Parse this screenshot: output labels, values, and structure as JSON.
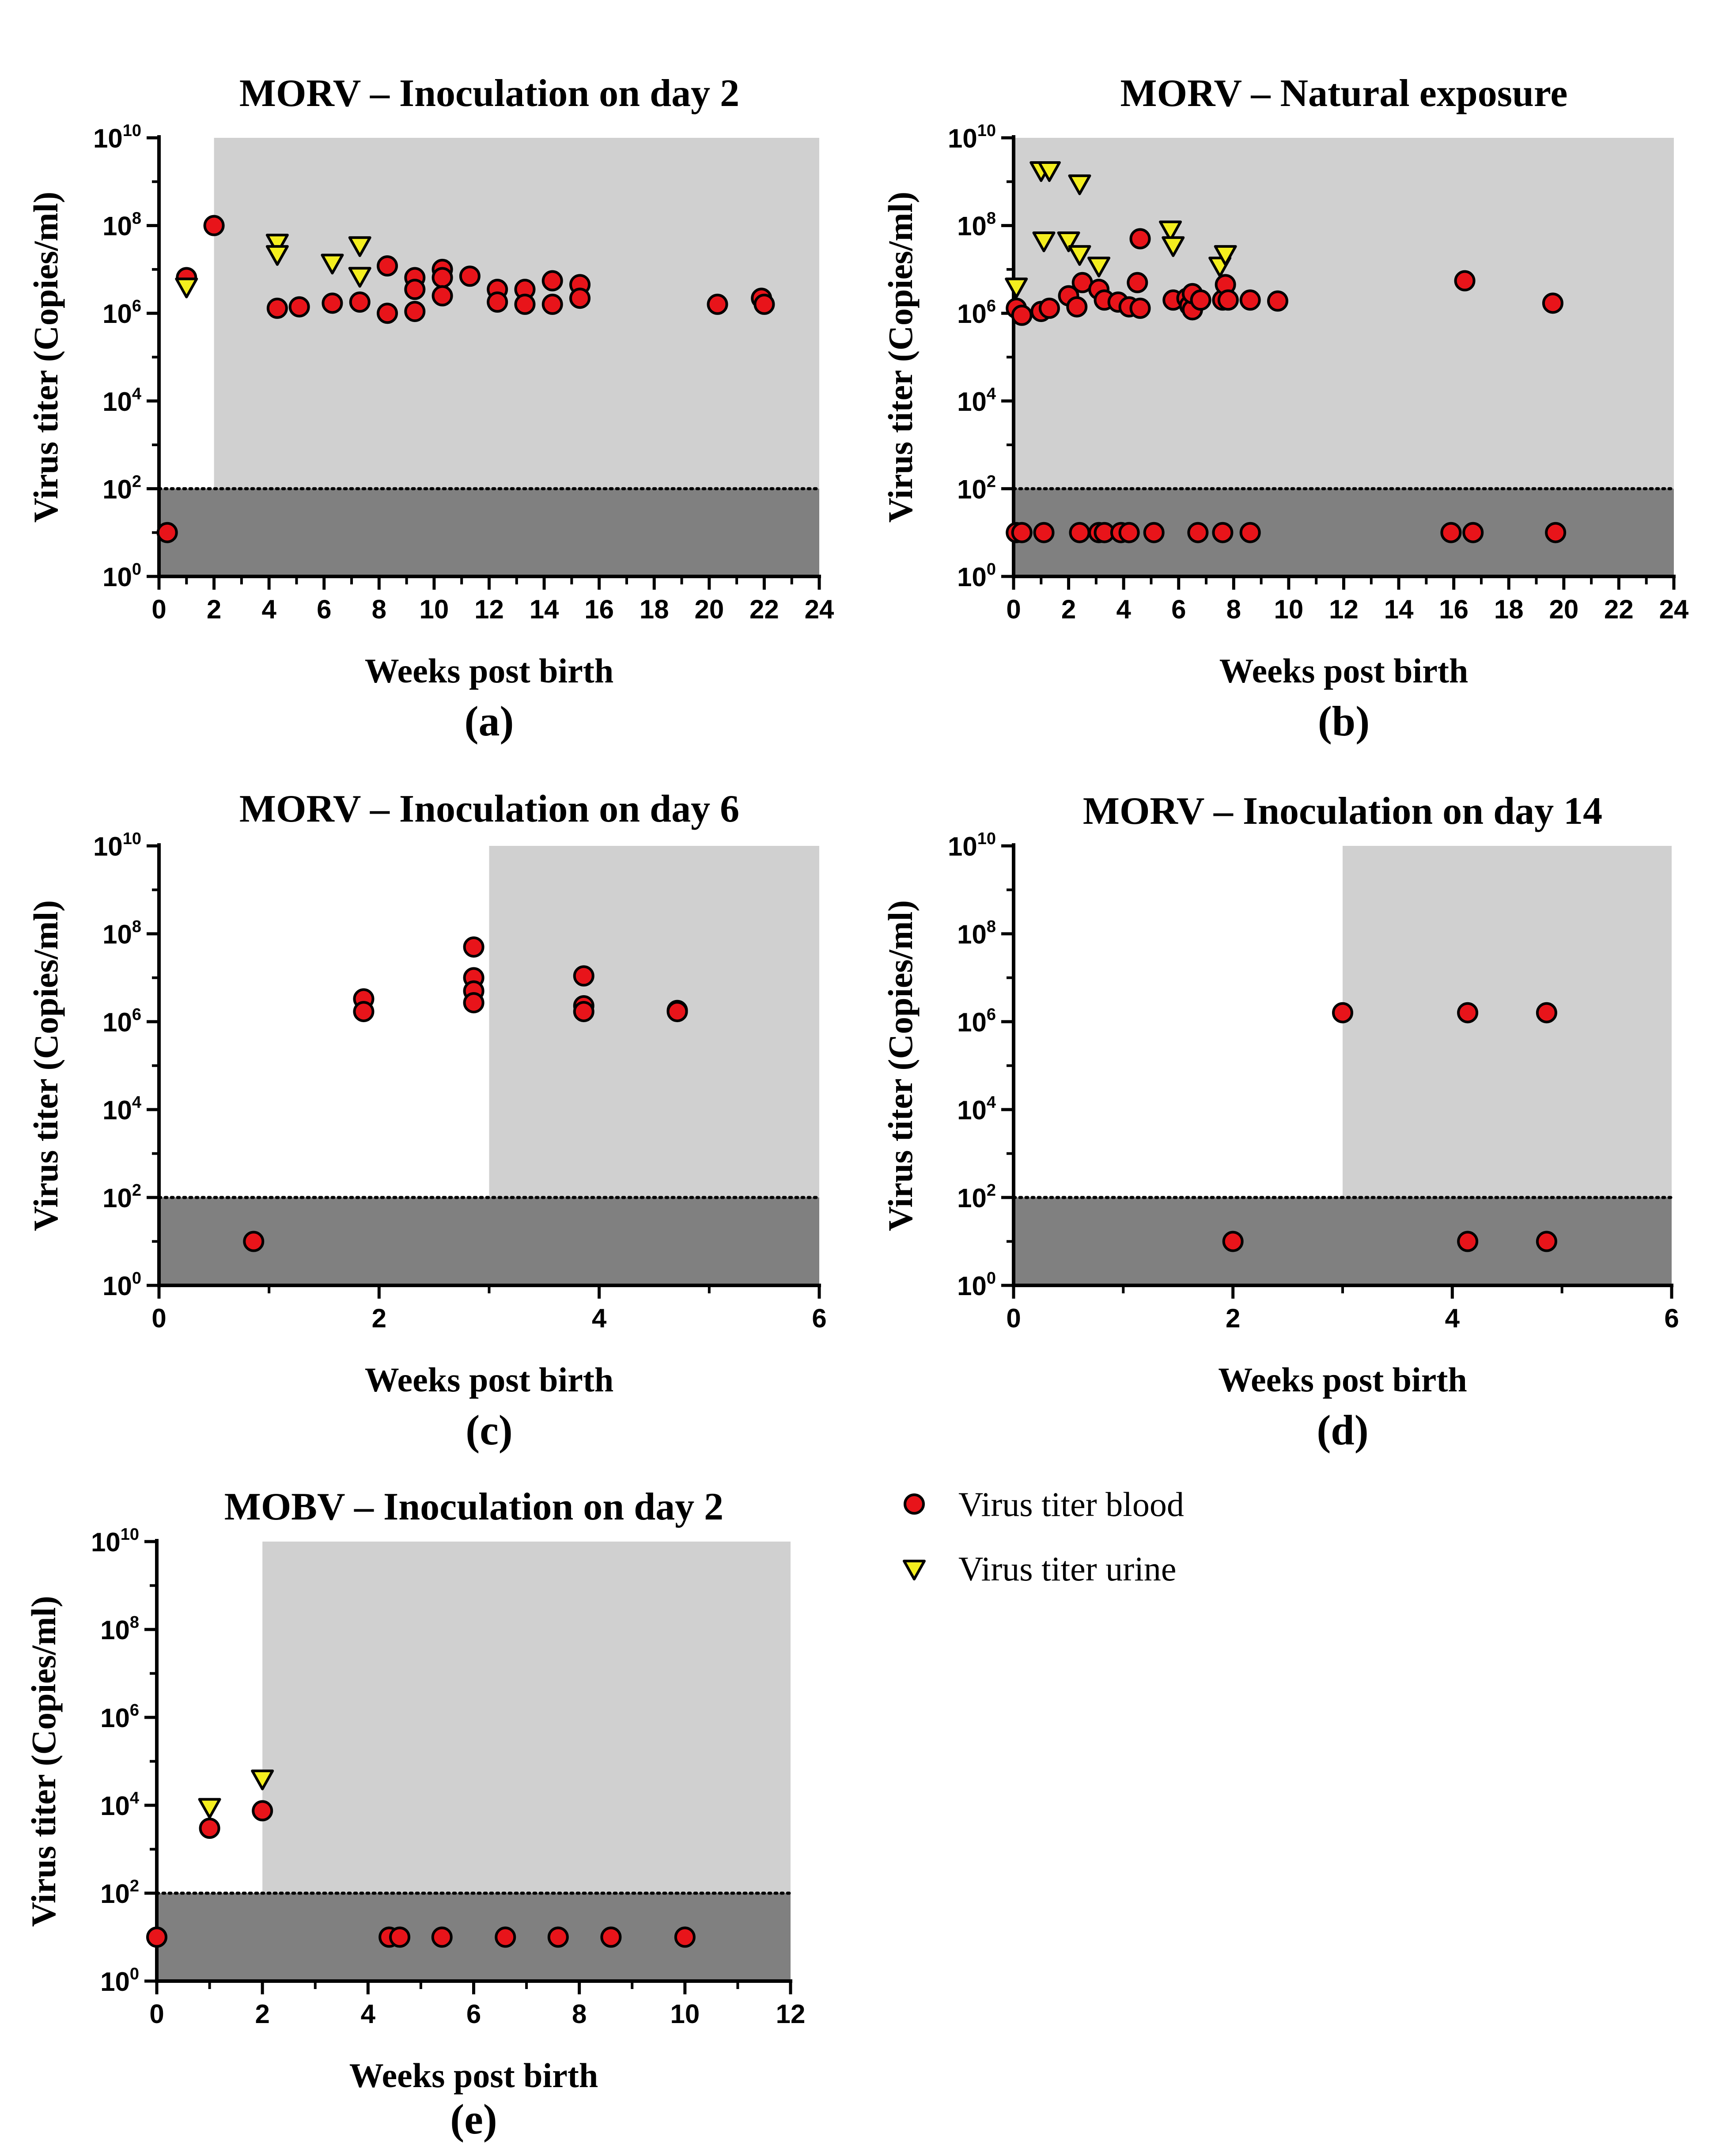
{
  "colors": {
    "blood_marker": "#e8141a",
    "urine_marker": "#f4ee1e",
    "marker_stroke": "#000000",
    "infected_shading": "#d0d0d0",
    "below_detection_shading": "#808080",
    "detection_line": "#000000"
  },
  "legend": {
    "blood": "Virus titer blood",
    "urine": "Virus titer urine"
  },
  "chart_data": [
    {
      "type": "scatter",
      "panel": "(a)",
      "title": "MORV – Inoculation on day 2",
      "xlabel": "Weeks post birth",
      "ylabel": "Virus titer (Copies/ml)",
      "xlim": [
        0,
        24
      ],
      "xticks": [
        0,
        2,
        4,
        6,
        8,
        10,
        12,
        14,
        16,
        18,
        20,
        22,
        24
      ],
      "ylim_exponent": [
        0,
        10
      ],
      "yscale": "log10",
      "yticks_exponent": [
        0,
        2,
        4,
        6,
        8,
        10
      ],
      "detection_limit": 100,
      "shaded_from_week": 2,
      "series": [
        {
          "name": "Virus titer blood",
          "marker": "circle",
          "points": [
            [
              0.3,
              10
            ],
            [
              1.0,
              6500000
            ],
            [
              2.0,
              100000000
            ],
            [
              4.3,
              1300000
            ],
            [
              5.1,
              1400000
            ],
            [
              6.3,
              1700000
            ],
            [
              7.3,
              1800000
            ],
            [
              8.3,
              12000000
            ],
            [
              8.3,
              1000000
            ],
            [
              9.3,
              6500000
            ],
            [
              9.3,
              3500000
            ],
            [
              9.3,
              1100000
            ],
            [
              10.3,
              10000000
            ],
            [
              10.3,
              6500000
            ],
            [
              10.3,
              2500000
            ],
            [
              11.3,
              7000000
            ],
            [
              12.3,
              3500000
            ],
            [
              12.3,
              1800000
            ],
            [
              13.3,
              3500000
            ],
            [
              13.3,
              1600000
            ],
            [
              14.3,
              5500000
            ],
            [
              14.3,
              1600000
            ],
            [
              15.3,
              4500000
            ],
            [
              15.3,
              2200000
            ],
            [
              20.3,
              1600000
            ],
            [
              21.9,
              2200000
            ],
            [
              22.0,
              1600000
            ]
          ]
        },
        {
          "name": "Virus titer urine",
          "marker": "triangle-down",
          "points": [
            [
              1.0,
              4000000
            ],
            [
              4.3,
              40000000
            ],
            [
              4.3,
              22000000
            ],
            [
              6.3,
              14000000
            ],
            [
              7.3,
              35000000
            ],
            [
              7.3,
              7000000
            ]
          ]
        }
      ]
    },
    {
      "type": "scatter",
      "panel": "(b)",
      "title": "MORV – Natural exposure",
      "xlabel": "Weeks post birth",
      "ylabel": "Virus titer (Copies/ml)",
      "xlim": [
        0,
        24
      ],
      "xticks": [
        0,
        2,
        4,
        6,
        8,
        10,
        12,
        14,
        16,
        18,
        20,
        22,
        24
      ],
      "ylim_exponent": [
        0,
        10
      ],
      "yscale": "log10",
      "yticks_exponent": [
        0,
        2,
        4,
        6,
        8,
        10
      ],
      "detection_limit": 100,
      "shaded_from_week": 0,
      "series": [
        {
          "name": "Virus titer blood",
          "marker": "circle",
          "points": [
            [
              0.1,
              10
            ],
            [
              0.3,
              10
            ],
            [
              1.1,
              10
            ],
            [
              2.4,
              10
            ],
            [
              3.1,
              10
            ],
            [
              3.3,
              10
            ],
            [
              3.9,
              10
            ],
            [
              4.2,
              10
            ],
            [
              5.1,
              10
            ],
            [
              6.7,
              10
            ],
            [
              7.6,
              10
            ],
            [
              8.6,
              10
            ],
            [
              15.9,
              10
            ],
            [
              16.7,
              10
            ],
            [
              19.7,
              10
            ],
            [
              0.1,
              1300000
            ],
            [
              0.3,
              900000
            ],
            [
              1.0,
              1100000
            ],
            [
              1.3,
              1300000
            ],
            [
              2.0,
              2500000
            ],
            [
              2.3,
              1400000
            ],
            [
              2.5,
              5000000
            ],
            [
              3.1,
              3500000
            ],
            [
              3.3,
              2000000
            ],
            [
              3.8,
              1800000
            ],
            [
              4.2,
              1400000
            ],
            [
              4.5,
              5000000
            ],
            [
              4.6,
              1300000
            ],
            [
              4.6,
              50000000
            ],
            [
              5.8,
              2000000
            ],
            [
              6.3,
              2200000
            ],
            [
              6.4,
              1500000
            ],
            [
              6.5,
              1200000
            ],
            [
              6.5,
              2800000
            ],
            [
              6.8,
              2000000
            ],
            [
              7.6,
              2000000
            ],
            [
              7.7,
              4500000
            ],
            [
              7.8,
              2000000
            ],
            [
              8.6,
              2000000
            ],
            [
              9.6,
              1900000
            ],
            [
              16.4,
              5500000
            ],
            [
              19.6,
              1700000
            ]
          ]
        },
        {
          "name": "Virus titer urine",
          "marker": "triangle-down",
          "points": [
            [
              0.1,
              4000000
            ],
            [
              1.0,
              1800000000
            ],
            [
              1.3,
              1800000000
            ],
            [
              1.1,
              45000000
            ],
            [
              2.0,
              45000000
            ],
            [
              2.4,
              900000000
            ],
            [
              2.4,
              22000000
            ],
            [
              3.1,
              12000000
            ],
            [
              5.7,
              80000000
            ],
            [
              5.8,
              35000000
            ],
            [
              7.5,
              12000000
            ],
            [
              7.7,
              22000000
            ]
          ]
        }
      ]
    },
    {
      "type": "scatter",
      "panel": "(c)",
      "title": "MORV – Inoculation on day 6",
      "xlabel": "Weeks post birth",
      "ylabel": "Virus titer (Copies/ml)",
      "xlim": [
        0,
        6
      ],
      "xticks": [
        0,
        2,
        4,
        6
      ],
      "ylim_exponent": [
        0,
        10
      ],
      "yscale": "log10",
      "yticks_exponent": [
        0,
        2,
        4,
        6,
        8,
        10
      ],
      "detection_limit": 100,
      "shaded_from_week": 3,
      "series": [
        {
          "name": "Virus titer blood",
          "marker": "circle",
          "points": [
            [
              0.86,
              10
            ],
            [
              1.86,
              3300000
            ],
            [
              1.86,
              1700000
            ],
            [
              2.86,
              50000000
            ],
            [
              2.86,
              10000000
            ],
            [
              2.86,
              5000000
            ],
            [
              2.86,
              2700000
            ],
            [
              3.86,
              11000000
            ],
            [
              3.86,
              2300000
            ],
            [
              3.86,
              1700000
            ],
            [
              4.71,
              1800000
            ],
            [
              4.71,
              1700000
            ]
          ]
        }
      ]
    },
    {
      "type": "scatter",
      "panel": "(d)",
      "title": "MORV – Inoculation on day 14",
      "xlabel": "Weeks post birth",
      "ylabel": "Virus titer (Copies/ml)",
      "xlim": [
        0,
        6
      ],
      "xticks": [
        0,
        2,
        4,
        6
      ],
      "ylim_exponent": [
        0,
        10
      ],
      "yscale": "log10",
      "yticks_exponent": [
        0,
        2,
        4,
        6,
        8,
        10
      ],
      "detection_limit": 100,
      "shaded_from_week": 3,
      "series": [
        {
          "name": "Virus titer blood",
          "marker": "circle",
          "points": [
            [
              2.0,
              10
            ],
            [
              3.0,
              1600000
            ],
            [
              4.14,
              1600000
            ],
            [
              4.14,
              10
            ],
            [
              4.86,
              1600000
            ],
            [
              4.86,
              10
            ]
          ]
        }
      ]
    },
    {
      "type": "scatter",
      "panel": "(e)",
      "title": "MOBV – Inoculation on day 2",
      "xlabel": "Weeks post birth",
      "ylabel": "Virus titer (Copies/ml)",
      "xlim": [
        0,
        12
      ],
      "xticks": [
        0,
        2,
        4,
        6,
        8,
        10,
        12
      ],
      "ylim_exponent": [
        0,
        10
      ],
      "yscale": "log10",
      "yticks_exponent": [
        0,
        2,
        4,
        6,
        8,
        10
      ],
      "detection_limit": 100,
      "shaded_from_week": 2,
      "series": [
        {
          "name": "Virus titer blood",
          "marker": "circle",
          "points": [
            [
              0,
              10
            ],
            [
              1,
              3000
            ],
            [
              2,
              7500
            ],
            [
              4.4,
              10
            ],
            [
              4.6,
              10
            ],
            [
              5.4,
              10
            ],
            [
              6.6,
              10
            ],
            [
              7.6,
              10
            ],
            [
              8.6,
              10
            ],
            [
              10,
              10
            ]
          ]
        },
        {
          "name": "Virus titer urine",
          "marker": "triangle-down",
          "points": [
            [
              1,
              9000
            ],
            [
              2,
              40000
            ]
          ]
        }
      ]
    }
  ]
}
